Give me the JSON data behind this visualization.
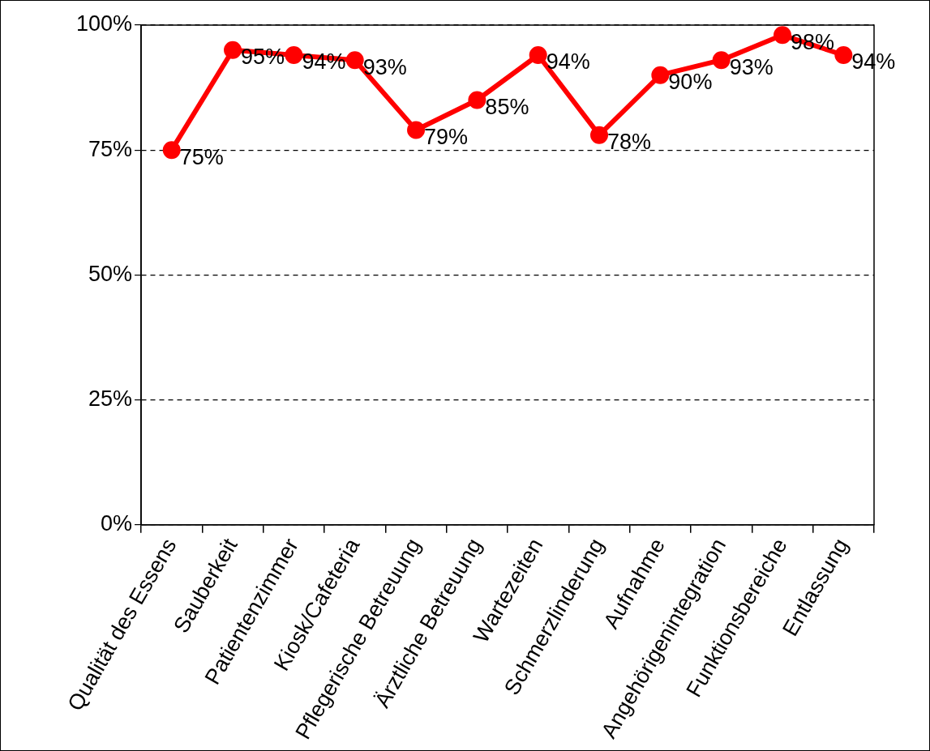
{
  "chart_data": {
    "type": "line",
    "categories": [
      "Qualität des Essens",
      "Sauberkeit",
      "Patientenzimmer",
      "Kiosk/Cafeteria",
      "Pflegerische Betreuung",
      "Ärztliche Betreuung",
      "Wartezeiten",
      "Schmerzlinderung",
      "Aufnahme",
      "Angehörigenintegration",
      "Funktionsbereiche",
      "Entlassung"
    ],
    "series": [
      {
        "color": "#ff0000",
        "values": [
          75,
          95,
          94,
          93,
          79,
          85,
          94,
          78,
          90,
          93,
          98,
          94
        ],
        "value_labels": [
          "75%",
          "95%",
          "94%",
          "93%",
          "79%",
          "85%",
          "94%",
          "78%",
          "90%",
          "93%",
          "98%",
          "94%"
        ]
      }
    ],
    "ylim": [
      0,
      100
    ],
    "yticks": [
      {
        "value": 0,
        "label": "0%"
      },
      {
        "value": 25,
        "label": "25%"
      },
      {
        "value": 50,
        "label": "50%"
      },
      {
        "value": 75,
        "label": "75%"
      },
      {
        "value": 100,
        "label": "100%"
      }
    ],
    "grid": "y",
    "legend": false,
    "marker": "circle",
    "line_style": "solid"
  }
}
